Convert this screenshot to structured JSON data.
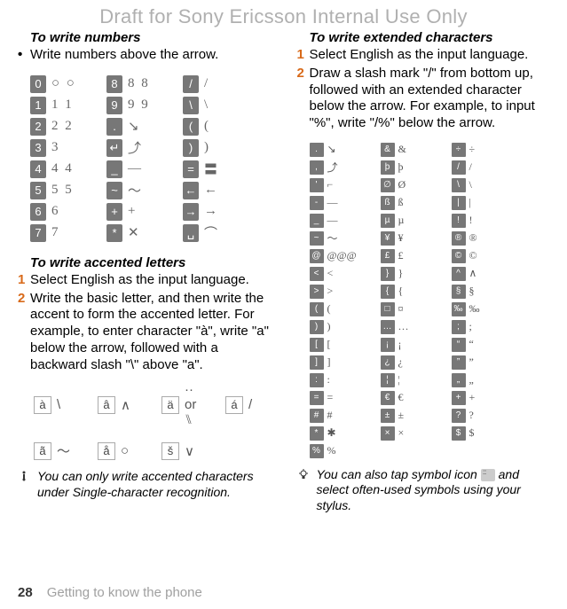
{
  "watermark": "Draft for Sony Ericsson Internal Use Only",
  "left": {
    "h1": "To write numbers",
    "p1": "Write numbers above the arrow.",
    "digits": {
      "colA": [
        "0",
        "1",
        "2",
        "3",
        "4",
        "5",
        "6",
        "7"
      ],
      "colA_samples": [
        "○ ○",
        "1 1",
        "2 2",
        "3",
        "4 4",
        "5 5",
        "6",
        "7"
      ],
      "colB": [
        "8",
        "9",
        ".",
        "↵",
        "_",
        "~",
        "+",
        "*"
      ],
      "colB_samples": [
        "8 8",
        "9 9",
        "↘",
        "⤴",
        "—",
        "〜",
        "+",
        "✕"
      ],
      "colC": [
        "/",
        "\\",
        "(",
        ")",
        "=",
        "←",
        "→",
        "␣"
      ],
      "colC_samples": [
        "/",
        "\\",
        "(",
        ")",
        "〓",
        "←",
        "→",
        "⌒"
      ]
    },
    "h2": "To write accented letters",
    "step1": "Select English as the input language.",
    "step2": "Write the basic letter, and then write the accent to form the accented letter. For example, to enter character \"à\", write \"a\" below the arrow, followed with a backward slash \"\\\" above \"a\".",
    "accents": [
      {
        "k": "à",
        "s": "\\"
      },
      {
        "k": "â",
        "s": "∧"
      },
      {
        "k": "ä",
        "s": "·· or ⑊"
      },
      {
        "k": "á",
        "s": "/"
      },
      {
        "k": "ã",
        "s": "〜"
      },
      {
        "k": "å",
        "s": "○"
      },
      {
        "k": "š",
        "s": "∨"
      }
    ],
    "note": "You can only write accented characters under Single-character recognition."
  },
  "right": {
    "h1": "To write extended characters",
    "step1": "Select English as the input language.",
    "step2": "Draw a slash mark \"/\" from bottom up, followed with an extended character below the arrow. For example, to input \"%\", write \"/%\" below the arrow.",
    "ext_rows": [
      [
        ".",
        "↘",
        "&",
        "&",
        "÷",
        "÷"
      ],
      [
        ",",
        "⤴",
        "þ",
        "þ",
        "/",
        "/"
      ],
      [
        "'",
        "⌐",
        "∅",
        "Ø",
        "\\",
        "\\"
      ],
      [
        "-",
        "—",
        "ß",
        "ß",
        "|",
        "|"
      ],
      [
        "_",
        "—",
        "µ",
        "µ",
        "!",
        "!"
      ],
      [
        "~",
        "〜",
        "¥",
        "¥",
        "®",
        "®"
      ],
      [
        "@",
        "@@@",
        "£",
        "£",
        "©",
        "©"
      ],
      [
        "<",
        "<",
        "}",
        "}",
        "^",
        "∧"
      ],
      [
        ">",
        ">",
        "{",
        "{",
        "§",
        "§"
      ],
      [
        "(",
        "(",
        "□",
        "¤",
        "‰",
        "‰"
      ],
      [
        ")",
        ")",
        "…",
        "…",
        ";",
        ";"
      ],
      [
        "[",
        "[",
        "¡",
        "¡",
        "“",
        "“"
      ],
      [
        "]",
        "]",
        "¿",
        "¿",
        "”",
        "”"
      ],
      [
        ":",
        ":",
        "¦",
        "¦",
        "„",
        "„"
      ],
      [
        "=",
        "=",
        "€",
        "€",
        "+",
        "+"
      ],
      [
        "#",
        "#",
        "±",
        "±",
        "?",
        "?"
      ],
      [
        "*",
        "✱",
        "×",
        "×",
        "$",
        "$"
      ],
      [
        "%",
        "%",
        "",
        "",
        "",
        ""
      ]
    ],
    "note_a": "You can also tap symbol icon ",
    "note_b": " and select often-used symbols using your stylus."
  },
  "footer": {
    "page": "28",
    "title": "Getting to know the phone"
  },
  "colors": {
    "accent_num": "#d86a1a",
    "watermark": "#b0b0b0",
    "footer_title": "#a0a0a0",
    "key_bg": "#777777"
  }
}
